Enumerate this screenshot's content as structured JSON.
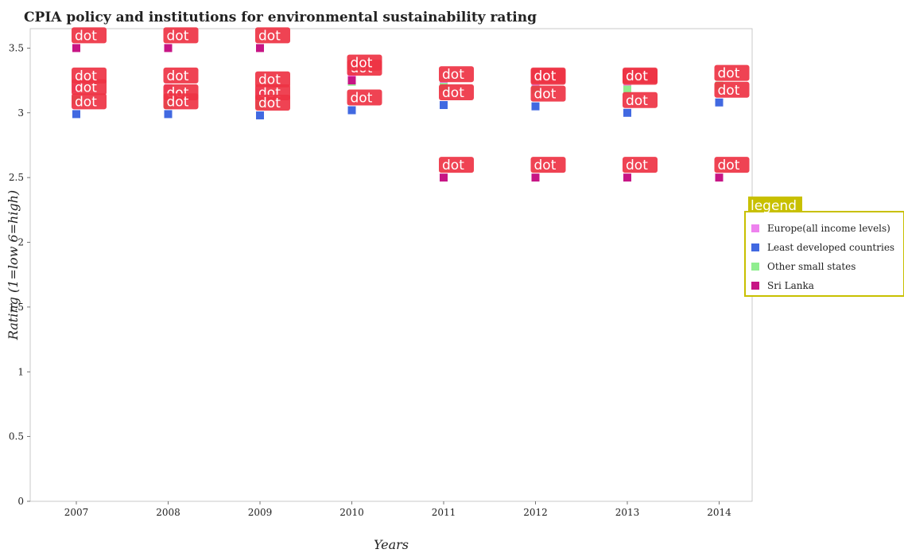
{
  "chart_data": {
    "type": "scatter",
    "title": "CPIA policy and institutions for environmental sustainability rating",
    "xlabel": "Years",
    "ylabel": "Rating (1=low 6=high)",
    "x": [
      "2007",
      "2008",
      "2009",
      "2010",
      "2011",
      "2012",
      "2013",
      "2014"
    ],
    "ylim": [
      0,
      3.65
    ],
    "yticks": [
      "0",
      "0.5",
      "1",
      "1.5",
      "2",
      "2.5",
      "3",
      "3.5"
    ],
    "grid": false,
    "legend_title": "legend",
    "legend_position": "right",
    "annotation_text": "dot",
    "series": [
      {
        "name": "Europe(all income levels)",
        "color": "#ee82ee",
        "values": [
          3.19,
          3.19,
          3.16,
          3.29,
          3.21,
          3.19,
          3.19,
          3.21
        ]
      },
      {
        "name": "Least developed countries",
        "color": "#4169e1",
        "values": [
          2.99,
          2.99,
          2.98,
          3.02,
          3.06,
          3.05,
          3.0,
          3.08
        ]
      },
      {
        "name": "Other small states",
        "color": "#90ee90",
        "values": [
          3.1,
          3.06,
          3.06,
          3.24,
          3.2,
          3.18,
          3.18,
          3.21
        ]
      },
      {
        "name": "Sri Lanka",
        "color": "#c71585",
        "values": [
          3.5,
          3.5,
          3.5,
          3.25,
          2.5,
          2.5,
          2.5,
          2.5
        ]
      }
    ]
  }
}
